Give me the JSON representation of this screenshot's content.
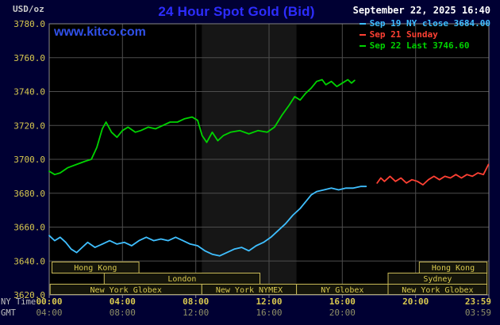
{
  "header": {
    "units": "USD/oz",
    "title": "24 Hour Spot Gold (Bid)",
    "datetime": "September 22, 2025 16:40",
    "watermark": "www.kitco.com",
    "legend": [
      {
        "label": "Sep 19 NY close 3684.00",
        "color": "#3fbfff"
      },
      {
        "label": "Sep 21 Sunday",
        "color": "#ff4033"
      },
      {
        "label": "Sep 22 Last 3746.60",
        "color": "#00d400"
      }
    ]
  },
  "axes": {
    "ny_label": "NY Time",
    "gmt_label": "GMT"
  },
  "colors": {
    "background": "#000033",
    "plot_bg": "#000000",
    "band": "#161616",
    "grid": "#4d4d4d",
    "frame": "#8a8a8a",
    "axis_text": "#d9c94f",
    "gmt_text": "#8f8f66",
    "axis_corner_text": "#c0c0c0",
    "session_fill": "#15150a",
    "session_border": "#c9b957",
    "session_text": "#d9c94f",
    "title_text": "#2d2dff",
    "watermark_text": "#3050e8",
    "datetime_text": "#ffffff",
    "units_text": "#c8c8c8"
  },
  "chart_data": {
    "type": "line",
    "title": "24 Hour Spot Gold (Bid)",
    "xlabel": "NY Time",
    "ylabel": "USD/oz",
    "ylim": [
      3620,
      3780
    ],
    "x_hours": [
      0,
      24
    ],
    "grid": true,
    "legend_position": "top-right",
    "y_ticks": [
      3620,
      3640,
      3660,
      3680,
      3700,
      3720,
      3740,
      3760,
      3780
    ],
    "x_ticks_ny": [
      [
        0,
        "00:00"
      ],
      [
        4,
        "04:00"
      ],
      [
        8,
        "08:00"
      ],
      [
        12,
        "12:00"
      ],
      [
        16,
        "16:00"
      ],
      [
        20,
        "20:00"
      ],
      [
        23.983,
        "23:59"
      ]
    ],
    "x_ticks_gmt": [
      [
        0,
        "04:00"
      ],
      [
        4,
        "08:00"
      ],
      [
        8,
        "12:00"
      ],
      [
        12,
        "16:00"
      ],
      [
        16,
        "20:00"
      ],
      [
        23.983,
        "03:59"
      ]
    ],
    "nymex_band_hours": [
      8.33,
      13.5
    ],
    "series": [
      {
        "name": "Sep 19 NY close 3684.00",
        "color": "#3fbfff",
        "points": [
          [
            0,
            3655
          ],
          [
            0.3,
            3652
          ],
          [
            0.6,
            3654
          ],
          [
            0.9,
            3651
          ],
          [
            1.2,
            3647
          ],
          [
            1.5,
            3645
          ],
          [
            1.8,
            3648
          ],
          [
            2.1,
            3651
          ],
          [
            2.5,
            3648
          ],
          [
            2.9,
            3650
          ],
          [
            3.3,
            3652
          ],
          [
            3.7,
            3650
          ],
          [
            4.1,
            3651
          ],
          [
            4.5,
            3649
          ],
          [
            4.9,
            3652
          ],
          [
            5.3,
            3654
          ],
          [
            5.7,
            3652
          ],
          [
            6.1,
            3653
          ],
          [
            6.5,
            3652
          ],
          [
            6.9,
            3654
          ],
          [
            7.3,
            3652
          ],
          [
            7.7,
            3650
          ],
          [
            8.1,
            3649
          ],
          [
            8.5,
            3646
          ],
          [
            8.9,
            3644
          ],
          [
            9.3,
            3643
          ],
          [
            9.7,
            3645
          ],
          [
            10.1,
            3647
          ],
          [
            10.5,
            3648
          ],
          [
            10.9,
            3646
          ],
          [
            11.3,
            3649
          ],
          [
            11.7,
            3651
          ],
          [
            12.1,
            3654
          ],
          [
            12.5,
            3658
          ],
          [
            12.9,
            3662
          ],
          [
            13.3,
            3667
          ],
          [
            13.7,
            3671
          ],
          [
            14,
            3675
          ],
          [
            14.3,
            3679
          ],
          [
            14.6,
            3681
          ],
          [
            15,
            3682
          ],
          [
            15.4,
            3683
          ],
          [
            15.8,
            3682
          ],
          [
            16.2,
            3683
          ],
          [
            16.6,
            3683
          ],
          [
            17,
            3684
          ],
          [
            17.3,
            3684
          ]
        ]
      },
      {
        "name": "Sep 21 Sunday",
        "color": "#ff4033",
        "points": [
          [
            17.9,
            3686
          ],
          [
            18.1,
            3689
          ],
          [
            18.3,
            3687
          ],
          [
            18.6,
            3690
          ],
          [
            18.9,
            3687
          ],
          [
            19.2,
            3689
          ],
          [
            19.5,
            3686
          ],
          [
            19.8,
            3688
          ],
          [
            20.1,
            3687
          ],
          [
            20.4,
            3685
          ],
          [
            20.7,
            3688
          ],
          [
            21,
            3690
          ],
          [
            21.3,
            3688
          ],
          [
            21.6,
            3690
          ],
          [
            21.9,
            3689
          ],
          [
            22.2,
            3691
          ],
          [
            22.5,
            3689
          ],
          [
            22.8,
            3691
          ],
          [
            23.1,
            3690
          ],
          [
            23.4,
            3692
          ],
          [
            23.7,
            3691
          ],
          [
            23.98,
            3697
          ]
        ]
      },
      {
        "name": "Sep 22 Last 3746.60",
        "color": "#00d400",
        "points": [
          [
            0,
            3693
          ],
          [
            0.3,
            3691
          ],
          [
            0.6,
            3692
          ],
          [
            1,
            3695
          ],
          [
            1.5,
            3697
          ],
          [
            2,
            3699
          ],
          [
            2.3,
            3700
          ],
          [
            2.6,
            3707
          ],
          [
            2.9,
            3718
          ],
          [
            3.1,
            3722
          ],
          [
            3.4,
            3716
          ],
          [
            3.7,
            3713
          ],
          [
            4,
            3717
          ],
          [
            4.3,
            3719
          ],
          [
            4.7,
            3716
          ],
          [
            5,
            3717
          ],
          [
            5.4,
            3719
          ],
          [
            5.8,
            3718
          ],
          [
            6.2,
            3720
          ],
          [
            6.6,
            3722
          ],
          [
            7,
            3722
          ],
          [
            7.4,
            3724
          ],
          [
            7.8,
            3725
          ],
          [
            8.1,
            3723
          ],
          [
            8.35,
            3714
          ],
          [
            8.6,
            3710
          ],
          [
            8.9,
            3716
          ],
          [
            9.2,
            3711
          ],
          [
            9.5,
            3714
          ],
          [
            9.9,
            3716
          ],
          [
            10.4,
            3717
          ],
          [
            10.9,
            3715
          ],
          [
            11.4,
            3717
          ],
          [
            11.9,
            3716
          ],
          [
            12.3,
            3719
          ],
          [
            12.7,
            3726
          ],
          [
            13.1,
            3732
          ],
          [
            13.4,
            3737
          ],
          [
            13.7,
            3735
          ],
          [
            14,
            3739
          ],
          [
            14.3,
            3742
          ],
          [
            14.6,
            3746
          ],
          [
            14.9,
            3747
          ],
          [
            15.1,
            3744
          ],
          [
            15.4,
            3746
          ],
          [
            15.7,
            3743
          ],
          [
            16,
            3745
          ],
          [
            16.3,
            3747
          ],
          [
            16.5,
            3745
          ],
          [
            16.67,
            3746.6
          ]
        ]
      }
    ],
    "sessions": [
      {
        "row": 0,
        "start": 0.15,
        "end": 4.9,
        "label": "Hong Kong"
      },
      {
        "row": 0,
        "start": 20.2,
        "end": 23.9,
        "label": "Hong Kong"
      },
      {
        "row": 1,
        "start": 3.0,
        "end": 11.5,
        "label": "London"
      },
      {
        "row": 1,
        "start": 18.5,
        "end": 23.9,
        "label": "Sydney"
      },
      {
        "row": 2,
        "start": 0.05,
        "end": 8.33,
        "label": "New York Globex"
      },
      {
        "row": 2,
        "start": 8.33,
        "end": 13.5,
        "label": "New York NYMEX"
      },
      {
        "row": 2,
        "start": 13.5,
        "end": 18.5,
        "label": "NY Globex"
      },
      {
        "row": 2,
        "start": 18.5,
        "end": 23.9,
        "label": "New York Globex"
      }
    ]
  }
}
